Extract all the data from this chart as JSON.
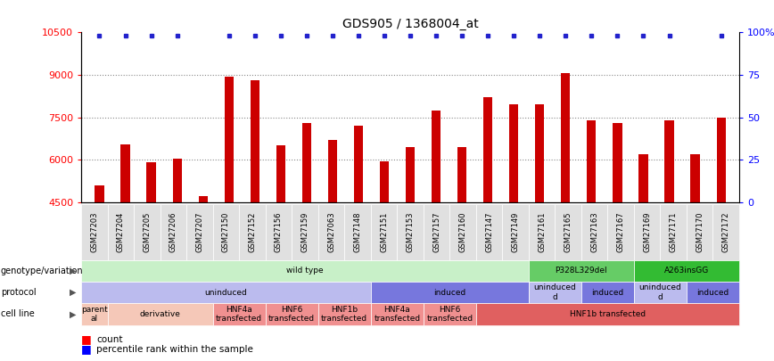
{
  "title": "GDS905 / 1368004_at",
  "samples": [
    "GSM27203",
    "GSM27204",
    "GSM27205",
    "GSM27206",
    "GSM27207",
    "GSM27150",
    "GSM27152",
    "GSM27156",
    "GSM27159",
    "GSM27063",
    "GSM27148",
    "GSM27151",
    "GSM27153",
    "GSM27157",
    "GSM27160",
    "GSM27147",
    "GSM27149",
    "GSM27161",
    "GSM27165",
    "GSM27163",
    "GSM27167",
    "GSM27169",
    "GSM27171",
    "GSM27170",
    "GSM27172"
  ],
  "counts": [
    5100,
    6550,
    5900,
    6050,
    4700,
    8950,
    8800,
    6500,
    7300,
    6700,
    7200,
    5950,
    6450,
    7750,
    6450,
    8200,
    7950,
    7950,
    9050,
    7400,
    7300,
    6200,
    7400,
    6200,
    7500
  ],
  "percentile_high": [
    true,
    true,
    true,
    true,
    false,
    true,
    true,
    true,
    true,
    true,
    true,
    true,
    true,
    true,
    true,
    true,
    true,
    true,
    true,
    true,
    true,
    true,
    true,
    false,
    true
  ],
  "ylim": [
    4500,
    10500
  ],
  "yticks_left": [
    4500,
    6000,
    7500,
    9000,
    10500
  ],
  "yticks_right": [
    0,
    25,
    50,
    75,
    100
  ],
  "bar_color": "#cc0000",
  "percentile_color": "#2222cc",
  "genotype_row": [
    {
      "label": "wild type",
      "start": 0,
      "end": 17,
      "color": "#c8f0c8"
    },
    {
      "label": "P328L329del",
      "start": 17,
      "end": 21,
      "color": "#66cc66"
    },
    {
      "label": "A263insGG",
      "start": 21,
      "end": 25,
      "color": "#33bb33"
    }
  ],
  "protocol_row": [
    {
      "label": "uninduced",
      "start": 0,
      "end": 11,
      "color": "#bbbbee"
    },
    {
      "label": "induced",
      "start": 11,
      "end": 17,
      "color": "#7777dd"
    },
    {
      "label": "uninduced\nd",
      "start": 17,
      "end": 19,
      "color": "#bbbbee"
    },
    {
      "label": "induced",
      "start": 19,
      "end": 21,
      "color": "#7777dd"
    },
    {
      "label": "uninduced\nd",
      "start": 21,
      "end": 23,
      "color": "#bbbbee"
    },
    {
      "label": "induced",
      "start": 23,
      "end": 25,
      "color": "#7777dd"
    }
  ],
  "cell_row": [
    {
      "label": "parent\nal",
      "start": 0,
      "end": 1,
      "color": "#f5c8b8"
    },
    {
      "label": "derivative",
      "start": 1,
      "end": 5,
      "color": "#f5c8b8"
    },
    {
      "label": "HNF4a\ntransfected",
      "start": 5,
      "end": 7,
      "color": "#f09090"
    },
    {
      "label": "HNF6\ntransfected",
      "start": 7,
      "end": 9,
      "color": "#f09090"
    },
    {
      "label": "HNF1b\ntransfected",
      "start": 9,
      "end": 11,
      "color": "#f09090"
    },
    {
      "label": "HNF4a\ntransfected",
      "start": 11,
      "end": 13,
      "color": "#f09090"
    },
    {
      "label": "HNF6\ntransfected",
      "start": 13,
      "end": 15,
      "color": "#f09090"
    },
    {
      "label": "HNF1b transfected",
      "start": 15,
      "end": 25,
      "color": "#e06060"
    }
  ]
}
